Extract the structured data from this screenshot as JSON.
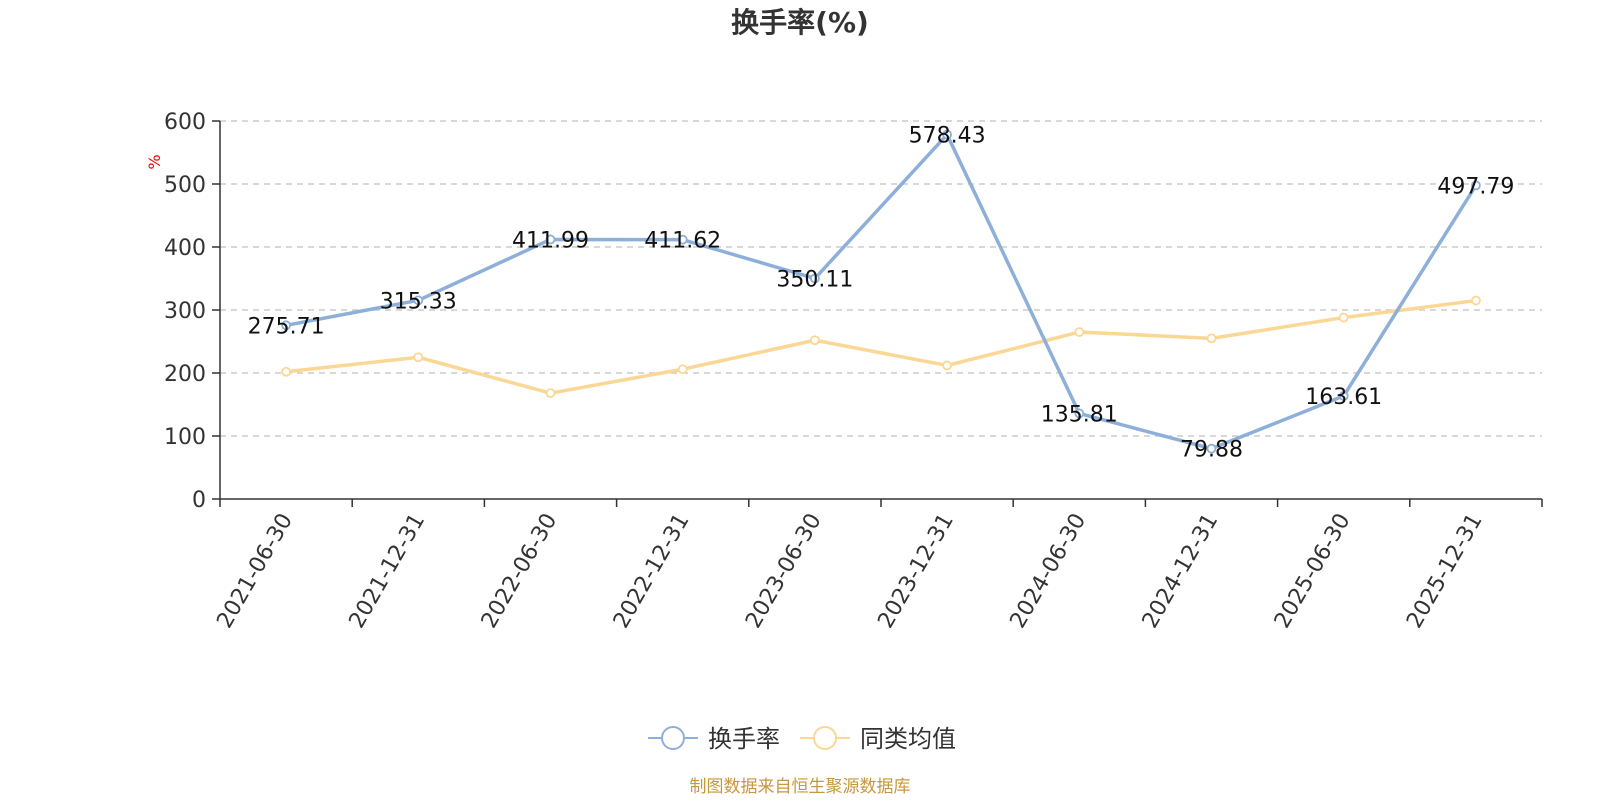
{
  "chart_data": {
    "type": "line",
    "title": "换手率(%)",
    "ylabel": "%",
    "ylim": [
      0,
      600
    ],
    "yticks": [
      0,
      100,
      200,
      300,
      400,
      500,
      600
    ],
    "grid": true,
    "legend_position": "bottom-center",
    "categories": [
      "2021-06-30",
      "2021-12-31",
      "2022-06-30",
      "2022-12-31",
      "2023-06-30",
      "2023-12-31",
      "2024-06-30",
      "2024-12-31",
      "2025-06-30",
      "2025-12-31"
    ],
    "series": [
      {
        "name": "换手率",
        "color": "#8eafd9",
        "values": [
          275.71,
          315.33,
          411.99,
          411.62,
          350.11,
          578.43,
          135.81,
          79.88,
          163.61,
          497.79
        ],
        "labels": [
          "275.71",
          "315.33",
          "411.99",
          "411.62",
          "350.11",
          "578.43",
          "135.81",
          "79.88",
          "163.61",
          "497.79"
        ]
      },
      {
        "name": "同类均值",
        "color": "#fad795",
        "values": [
          202,
          225,
          168,
          206,
          252,
          212,
          265,
          255,
          288,
          315
        ]
      }
    ]
  },
  "source_note": "制图数据来自恒生聚源数据库",
  "colors": {
    "axis": "#333333",
    "grid": "#cccccc",
    "unit": "#ff0000",
    "source": "#c8963c"
  }
}
